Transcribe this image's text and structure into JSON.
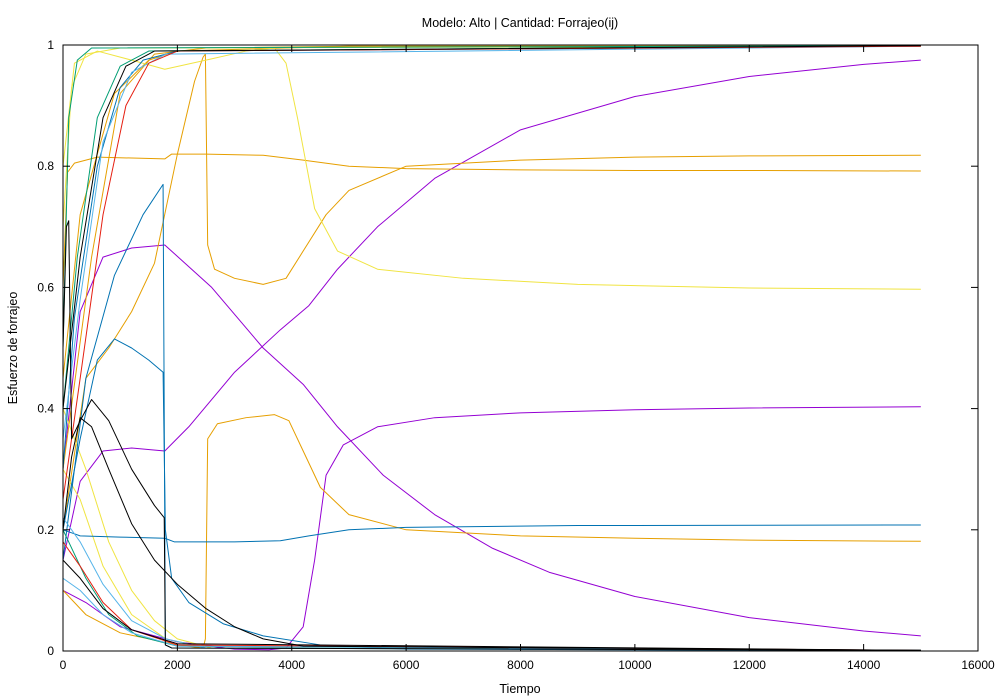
{
  "chart_data": {
    "type": "line",
    "title": "Modelo: Alto | Cantidad: Forrajeo(ij)",
    "xlabel": "Tiempo",
    "ylabel": "Esfuerzo de forrajeo",
    "xlim": [
      0,
      16000
    ],
    "ylim": [
      0,
      1
    ],
    "x_ticks": [
      "0",
      "2000",
      "4000",
      "6000",
      "8000",
      "10000",
      "12000",
      "14000",
      "16000"
    ],
    "y_ticks": [
      "0",
      "0.2",
      "0.4",
      "0.6",
      "0.8",
      "1"
    ],
    "grid": false,
    "legend": "none",
    "series": [
      {
        "color": "#9400d3",
        "points": [
          [
            0,
            0.3
          ],
          [
            300,
            0.56
          ],
          [
            700,
            0.65
          ],
          [
            1200,
            0.665
          ],
          [
            1780,
            0.67
          ],
          [
            2600,
            0.6
          ],
          [
            3500,
            0.5
          ],
          [
            4200,
            0.44
          ],
          [
            4800,
            0.37
          ],
          [
            5600,
            0.29
          ],
          [
            6500,
            0.225
          ],
          [
            7500,
            0.17
          ],
          [
            8500,
            0.13
          ],
          [
            10000,
            0.09
          ],
          [
            12000,
            0.055
          ],
          [
            14000,
            0.033
          ],
          [
            15000,
            0.025
          ]
        ]
      },
      {
        "color": "#9400d3",
        "points": [
          [
            0,
            0.15
          ],
          [
            300,
            0.28
          ],
          [
            700,
            0.33
          ],
          [
            1200,
            0.335
          ],
          [
            1780,
            0.33
          ],
          [
            2200,
            0.37
          ],
          [
            3000,
            0.46
          ],
          [
            3800,
            0.53
          ],
          [
            4300,
            0.57
          ],
          [
            4800,
            0.63
          ],
          [
            5500,
            0.7
          ],
          [
            6500,
            0.78
          ],
          [
            8000,
            0.86
          ],
          [
            10000,
            0.915
          ],
          [
            12000,
            0.948
          ],
          [
            14000,
            0.968
          ],
          [
            15000,
            0.975
          ]
        ]
      },
      {
        "color": "#9400d3",
        "points": [
          [
            0,
            0.1
          ],
          [
            400,
            0.08
          ],
          [
            1000,
            0.04
          ],
          [
            2000,
            0.015
          ],
          [
            3000,
            0.003
          ],
          [
            3600,
            0.002
          ],
          [
            3900,
            0.005
          ],
          [
            4200,
            0.04
          ],
          [
            4400,
            0.15
          ],
          [
            4600,
            0.29
          ],
          [
            4900,
            0.34
          ],
          [
            5500,
            0.37
          ],
          [
            6500,
            0.385
          ],
          [
            8000,
            0.393
          ],
          [
            10000,
            0.398
          ],
          [
            12000,
            0.401
          ],
          [
            15000,
            0.403
          ]
        ]
      },
      {
        "color": "#e69f00",
        "points": [
          [
            0,
            0.6
          ],
          [
            80,
            0.79
          ],
          [
            200,
            0.805
          ],
          [
            600,
            0.815
          ],
          [
            1780,
            0.812
          ],
          [
            1900,
            0.82
          ],
          [
            2500,
            0.82
          ],
          [
            3500,
            0.818
          ],
          [
            4200,
            0.81
          ],
          [
            5000,
            0.8
          ],
          [
            6000,
            0.796
          ],
          [
            8000,
            0.794
          ],
          [
            10000,
            0.793
          ],
          [
            12000,
            0.793
          ],
          [
            15000,
            0.792
          ]
        ]
      },
      {
        "color": "#e69f00",
        "points": [
          [
            0,
            0.2
          ],
          [
            400,
            0.45
          ],
          [
            800,
            0.5
          ],
          [
            1200,
            0.56
          ],
          [
            1600,
            0.64
          ],
          [
            2000,
            0.82
          ],
          [
            2300,
            0.94
          ],
          [
            2450,
            0.98
          ],
          [
            2490,
            0.985
          ],
          [
            2530,
            0.67
          ],
          [
            2650,
            0.63
          ],
          [
            3000,
            0.615
          ],
          [
            3500,
            0.605
          ],
          [
            3900,
            0.615
          ],
          [
            4200,
            0.66
          ],
          [
            4600,
            0.72
          ],
          [
            5000,
            0.76
          ],
          [
            6000,
            0.8
          ],
          [
            8000,
            0.81
          ],
          [
            10000,
            0.815
          ],
          [
            12000,
            0.817
          ],
          [
            15000,
            0.818
          ]
        ]
      },
      {
        "color": "#e69f00",
        "points": [
          [
            0,
            0.1
          ],
          [
            400,
            0.06
          ],
          [
            1000,
            0.03
          ],
          [
            2000,
            0.01
          ],
          [
            2450,
            0.005
          ],
          [
            2490,
            0.02
          ],
          [
            2530,
            0.35
          ],
          [
            2700,
            0.375
          ],
          [
            3200,
            0.385
          ],
          [
            3700,
            0.39
          ],
          [
            3950,
            0.38
          ],
          [
            4200,
            0.33
          ],
          [
            4500,
            0.27
          ],
          [
            5000,
            0.225
          ],
          [
            6000,
            0.2
          ],
          [
            8000,
            0.19
          ],
          [
            10000,
            0.186
          ],
          [
            12000,
            0.183
          ],
          [
            15000,
            0.181
          ]
        ]
      },
      {
        "color": "#e69f00",
        "points": [
          [
            0,
            0.3
          ],
          [
            500,
            0.65
          ],
          [
            1000,
            0.92
          ],
          [
            1600,
            0.985
          ],
          [
            2500,
            0.995
          ],
          [
            5000,
            0.998
          ],
          [
            15000,
            0.998
          ]
        ]
      },
      {
        "color": "#e69f00",
        "points": [
          [
            0,
            0.45
          ],
          [
            300,
            0.72
          ],
          [
            900,
            0.92
          ],
          [
            1500,
            0.975
          ],
          [
            2000,
            0.99
          ],
          [
            5000,
            0.998
          ],
          [
            15000,
            0.998
          ]
        ]
      },
      {
        "color": "#f0e442",
        "points": [
          [
            0,
            0.8
          ],
          [
            200,
            0.97
          ],
          [
            600,
            0.99
          ],
          [
            1200,
            0.975
          ],
          [
            1780,
            0.96
          ],
          [
            2500,
            0.975
          ],
          [
            3200,
            0.99
          ],
          [
            3700,
            0.995
          ],
          [
            3900,
            0.97
          ],
          [
            4100,
            0.88
          ],
          [
            4400,
            0.73
          ],
          [
            4800,
            0.66
          ],
          [
            5500,
            0.63
          ],
          [
            7000,
            0.615
          ],
          [
            9000,
            0.605
          ],
          [
            12000,
            0.599
          ],
          [
            15000,
            0.597
          ]
        ]
      },
      {
        "color": "#f0e442",
        "points": [
          [
            0,
            0.7
          ],
          [
            150,
            0.93
          ],
          [
            400,
            0.985
          ],
          [
            1000,
            0.995
          ],
          [
            15000,
            0.998
          ]
        ]
      },
      {
        "color": "#f0e442",
        "points": [
          [
            0,
            0.4
          ],
          [
            400,
            0.3
          ],
          [
            800,
            0.18
          ],
          [
            1200,
            0.1
          ],
          [
            1600,
            0.05
          ],
          [
            2000,
            0.02
          ],
          [
            2600,
            0.005
          ],
          [
            15000,
            0.001
          ]
        ]
      },
      {
        "color": "#f0e442",
        "points": [
          [
            0,
            0.3
          ],
          [
            300,
            0.25
          ],
          [
            700,
            0.14
          ],
          [
            1200,
            0.06
          ],
          [
            1800,
            0.02
          ],
          [
            2500,
            0.005
          ],
          [
            15000,
            0.001
          ]
        ]
      },
      {
        "color": "#0072b2",
        "points": [
          [
            0,
            0.2
          ],
          [
            300,
            0.35
          ],
          [
            600,
            0.48
          ],
          [
            900,
            0.515
          ],
          [
            1200,
            0.5
          ],
          [
            1500,
            0.48
          ],
          [
            1750,
            0.46
          ],
          [
            1790,
            0.2
          ],
          [
            1900,
            0.12
          ],
          [
            2200,
            0.08
          ],
          [
            2800,
            0.045
          ],
          [
            3500,
            0.025
          ],
          [
            4500,
            0.01
          ],
          [
            6000,
            0.003
          ],
          [
            15000,
            0.001
          ]
        ]
      },
      {
        "color": "#0072b2",
        "points": [
          [
            0,
            0.2
          ],
          [
            150,
            0.195
          ],
          [
            300,
            0.19
          ],
          [
            1000,
            0.188
          ],
          [
            1780,
            0.186
          ],
          [
            1950,
            0.18
          ],
          [
            3000,
            0.18
          ],
          [
            3800,
            0.182
          ],
          [
            4300,
            0.19
          ],
          [
            5000,
            0.2
          ],
          [
            6000,
            0.204
          ],
          [
            9000,
            0.207
          ],
          [
            15000,
            0.208
          ]
        ]
      },
      {
        "color": "#0072b2",
        "points": [
          [
            0,
            0.15
          ],
          [
            400,
            0.45
          ],
          [
            900,
            0.62
          ],
          [
            1400,
            0.72
          ],
          [
            1750,
            0.77
          ],
          [
            1790,
            0.01
          ],
          [
            1900,
            0.005
          ],
          [
            15000,
            0.001
          ]
        ]
      },
      {
        "color": "#0072b2",
        "points": [
          [
            0,
            0.3
          ],
          [
            200,
            0.55
          ],
          [
            600,
            0.8
          ],
          [
            1000,
            0.93
          ],
          [
            1400,
            0.975
          ],
          [
            2000,
            0.99
          ],
          [
            15000,
            0.998
          ]
        ]
      },
      {
        "color": "#009e73",
        "points": [
          [
            0,
            0.5
          ],
          [
            100,
            0.88
          ],
          [
            250,
            0.975
          ],
          [
            500,
            0.995
          ],
          [
            15000,
            0.999
          ]
        ]
      },
      {
        "color": "#009e73",
        "points": [
          [
            0,
            0.4
          ],
          [
            250,
            0.65
          ],
          [
            600,
            0.88
          ],
          [
            1000,
            0.965
          ],
          [
            1500,
            0.99
          ],
          [
            15000,
            0.999
          ]
        ]
      },
      {
        "color": "#009e73",
        "points": [
          [
            0,
            0.2
          ],
          [
            400,
            0.12
          ],
          [
            800,
            0.06
          ],
          [
            1300,
            0.025
          ],
          [
            2000,
            0.008
          ],
          [
            15000,
            0.001
          ]
        ]
      },
      {
        "color": "#56b4e9",
        "points": [
          [
            0,
            0.35
          ],
          [
            300,
            0.58
          ],
          [
            700,
            0.84
          ],
          [
            1200,
            0.955
          ],
          [
            1800,
            0.985
          ],
          [
            15000,
            0.998
          ]
        ]
      },
      {
        "color": "#56b4e9",
        "points": [
          [
            0,
            0.22
          ],
          [
            300,
            0.18
          ],
          [
            700,
            0.11
          ],
          [
            1200,
            0.05
          ],
          [
            1800,
            0.02
          ],
          [
            2500,
            0.005
          ],
          [
            15000,
            0.001
          ]
        ]
      },
      {
        "color": "#56b4e9",
        "points": [
          [
            0,
            0.12
          ],
          [
            300,
            0.1
          ],
          [
            700,
            0.06
          ],
          [
            1200,
            0.03
          ],
          [
            2000,
            0.008
          ],
          [
            15000,
            0.001
          ]
        ]
      },
      {
        "color": "#e51e10",
        "points": [
          [
            0,
            0.25
          ],
          [
            300,
            0.45
          ],
          [
            700,
            0.72
          ],
          [
            1100,
            0.9
          ],
          [
            1500,
            0.97
          ],
          [
            2000,
            0.99
          ],
          [
            15000,
            0.998
          ]
        ]
      },
      {
        "color": "#e51e10",
        "points": [
          [
            0,
            0.18
          ],
          [
            300,
            0.14
          ],
          [
            700,
            0.08
          ],
          [
            1200,
            0.035
          ],
          [
            2000,
            0.01
          ],
          [
            15000,
            0.001
          ]
        ]
      },
      {
        "color": "#000000",
        "points": [
          [
            0,
            0.5
          ],
          [
            60,
            0.7
          ],
          [
            100,
            0.71
          ],
          [
            150,
            0.35
          ],
          [
            300,
            0.38
          ],
          [
            500,
            0.415
          ],
          [
            800,
            0.38
          ],
          [
            1200,
            0.3
          ],
          [
            1600,
            0.24
          ],
          [
            1770,
            0.22
          ],
          [
            1790,
            0.01
          ],
          [
            1900,
            0.005
          ],
          [
            15000,
            0.001
          ]
        ]
      },
      {
        "color": "#000000",
        "points": [
          [
            0,
            0.2
          ],
          [
            150,
            0.32
          ],
          [
            300,
            0.385
          ],
          [
            500,
            0.37
          ],
          [
            800,
            0.3
          ],
          [
            1200,
            0.21
          ],
          [
            1600,
            0.15
          ],
          [
            2000,
            0.11
          ],
          [
            2500,
            0.07
          ],
          [
            3000,
            0.04
          ],
          [
            3500,
            0.02
          ],
          [
            4200,
            0.008
          ],
          [
            15000,
            0.001
          ]
        ]
      },
      {
        "color": "#000000",
        "points": [
          [
            0,
            0.4
          ],
          [
            300,
            0.65
          ],
          [
            700,
            0.88
          ],
          [
            1100,
            0.965
          ],
          [
            1600,
            0.99
          ],
          [
            15000,
            0.999
          ]
        ]
      },
      {
        "color": "#000000",
        "points": [
          [
            0,
            0.15
          ],
          [
            300,
            0.12
          ],
          [
            700,
            0.07
          ],
          [
            1200,
            0.035
          ],
          [
            2000,
            0.012
          ],
          [
            15000,
            0.001
          ]
        ]
      }
    ]
  }
}
